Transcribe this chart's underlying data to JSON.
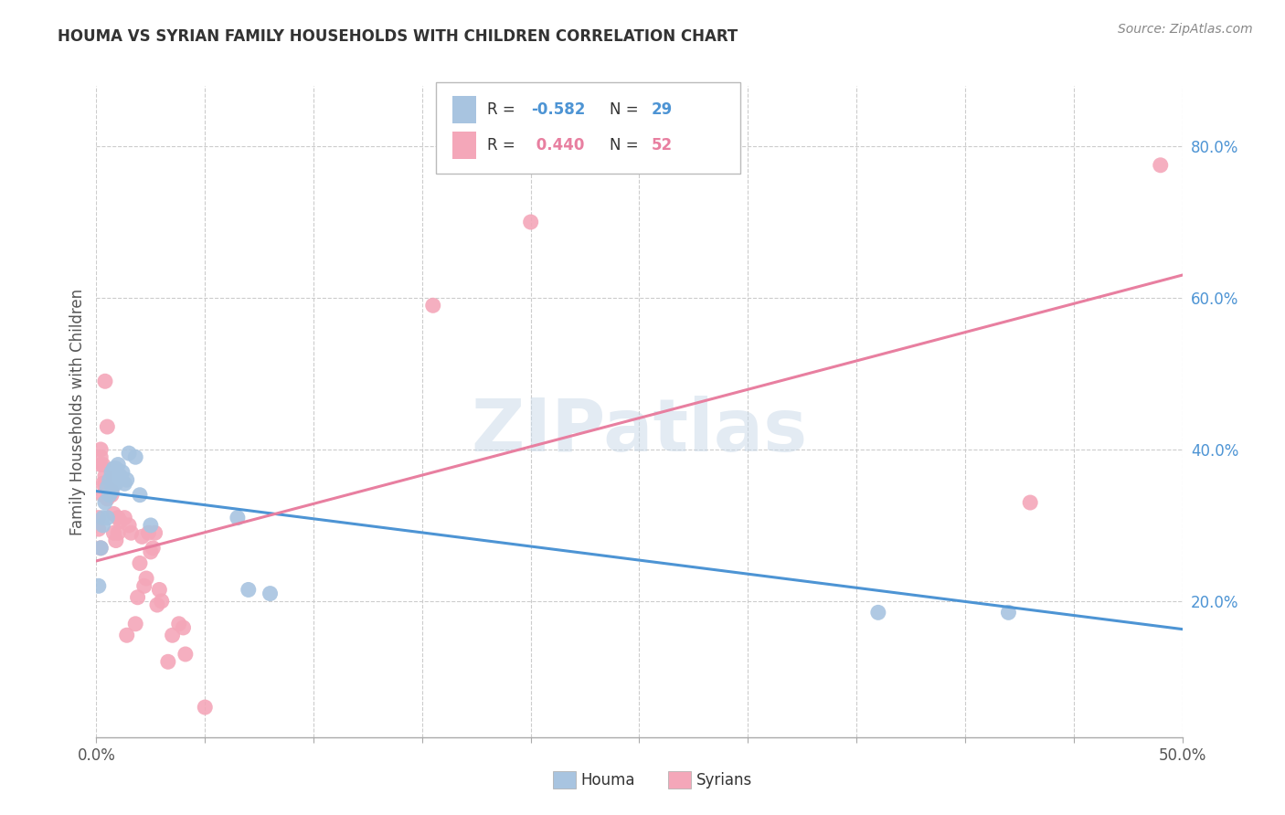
{
  "title": "HOUMA VS SYRIAN FAMILY HOUSEHOLDS WITH CHILDREN CORRELATION CHART",
  "source": "Source: ZipAtlas.com",
  "ylabel": "Family Households with Children",
  "xlim": [
    0.0,
    0.5
  ],
  "ylim": [
    0.02,
    0.88
  ],
  "xticks": [
    0.0,
    0.05,
    0.1,
    0.15,
    0.2,
    0.25,
    0.3,
    0.35,
    0.4,
    0.45,
    0.5
  ],
  "ytick_positions": [
    0.2,
    0.4,
    0.6,
    0.8
  ],
  "ytick_labels": [
    "20.0%",
    "40.0%",
    "60.0%",
    "80.0%"
  ],
  "watermark": "ZIPatlas",
  "legend_r_houma": "-0.582",
  "legend_n_houma": "29",
  "legend_r_syrian": "0.440",
  "legend_n_syrian": "52",
  "houma_color": "#a8c4e0",
  "syrian_color": "#f4a7b9",
  "houma_line_color": "#4d94d4",
  "syrian_line_color": "#e87fa0",
  "grid_color": "#cccccc",
  "houma_scatter": [
    [
      0.001,
      0.22
    ],
    [
      0.002,
      0.27
    ],
    [
      0.003,
      0.3
    ],
    [
      0.003,
      0.31
    ],
    [
      0.004,
      0.33
    ],
    [
      0.005,
      0.31
    ],
    [
      0.005,
      0.35
    ],
    [
      0.006,
      0.36
    ],
    [
      0.006,
      0.34
    ],
    [
      0.007,
      0.345
    ],
    [
      0.007,
      0.37
    ],
    [
      0.008,
      0.36
    ],
    [
      0.008,
      0.375
    ],
    [
      0.009,
      0.355
    ],
    [
      0.009,
      0.375
    ],
    [
      0.01,
      0.38
    ],
    [
      0.011,
      0.365
    ],
    [
      0.012,
      0.37
    ],
    [
      0.013,
      0.355
    ],
    [
      0.014,
      0.36
    ],
    [
      0.015,
      0.395
    ],
    [
      0.018,
      0.39
    ],
    [
      0.02,
      0.34
    ],
    [
      0.025,
      0.3
    ],
    [
      0.065,
      0.31
    ],
    [
      0.07,
      0.215
    ],
    [
      0.08,
      0.21
    ],
    [
      0.36,
      0.185
    ],
    [
      0.42,
      0.185
    ]
  ],
  "syrian_scatter": [
    [
      0.001,
      0.31
    ],
    [
      0.001,
      0.295
    ],
    [
      0.002,
      0.27
    ],
    [
      0.002,
      0.38
    ],
    [
      0.002,
      0.39
    ],
    [
      0.002,
      0.4
    ],
    [
      0.003,
      0.38
    ],
    [
      0.003,
      0.355
    ],
    [
      0.003,
      0.34
    ],
    [
      0.004,
      0.365
    ],
    [
      0.004,
      0.355
    ],
    [
      0.004,
      0.49
    ],
    [
      0.005,
      0.43
    ],
    [
      0.005,
      0.35
    ],
    [
      0.005,
      0.335
    ],
    [
      0.006,
      0.345
    ],
    [
      0.006,
      0.34
    ],
    [
      0.007,
      0.34
    ],
    [
      0.007,
      0.345
    ],
    [
      0.008,
      0.315
    ],
    [
      0.008,
      0.29
    ],
    [
      0.009,
      0.28
    ],
    [
      0.01,
      0.31
    ],
    [
      0.01,
      0.29
    ],
    [
      0.011,
      0.305
    ],
    [
      0.013,
      0.31
    ],
    [
      0.014,
      0.155
    ],
    [
      0.015,
      0.3
    ],
    [
      0.016,
      0.29
    ],
    [
      0.018,
      0.17
    ],
    [
      0.019,
      0.205
    ],
    [
      0.02,
      0.25
    ],
    [
      0.021,
      0.285
    ],
    [
      0.022,
      0.22
    ],
    [
      0.023,
      0.23
    ],
    [
      0.024,
      0.29
    ],
    [
      0.025,
      0.265
    ],
    [
      0.026,
      0.27
    ],
    [
      0.027,
      0.29
    ],
    [
      0.028,
      0.195
    ],
    [
      0.029,
      0.215
    ],
    [
      0.03,
      0.2
    ],
    [
      0.033,
      0.12
    ],
    [
      0.035,
      0.155
    ],
    [
      0.038,
      0.17
    ],
    [
      0.04,
      0.165
    ],
    [
      0.041,
      0.13
    ],
    [
      0.05,
      0.06
    ],
    [
      0.155,
      0.59
    ],
    [
      0.2,
      0.7
    ],
    [
      0.43,
      0.33
    ],
    [
      0.49,
      0.775
    ]
  ],
  "houma_trendline": [
    [
      0.0,
      0.345
    ],
    [
      0.5,
      0.163
    ]
  ],
  "syrian_trendline": [
    [
      0.0,
      0.253
    ],
    [
      0.5,
      0.63
    ]
  ]
}
